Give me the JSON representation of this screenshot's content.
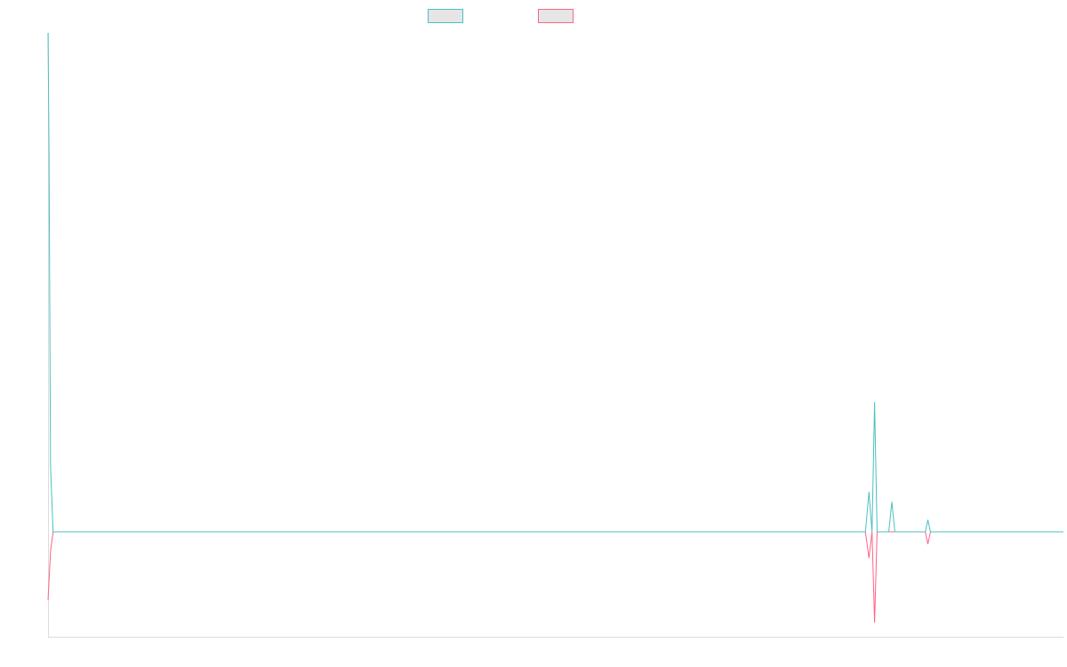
{
  "chart_data": {
    "type": "line",
    "title": "",
    "xlabel": "",
    "ylabel": "",
    "grid": false,
    "legend_position": "top-center",
    "x_range": [
      0,
      200
    ],
    "ylim": [
      -60,
      250
    ],
    "series": [
      {
        "color": "#4bc0c0",
        "fill": "#e6e6e6",
        "points": [
          [
            0,
            250
          ],
          [
            0.2,
            190
          ],
          [
            0.5,
            33
          ],
          [
            1.0,
            0
          ],
          [
            161,
            0
          ],
          [
            161.7,
            20
          ],
          [
            162.3,
            0
          ],
          [
            162.8,
            65
          ],
          [
            163.3,
            0
          ],
          [
            165.6,
            0
          ],
          [
            166.2,
            15
          ],
          [
            166.8,
            0
          ],
          [
            172.8,
            0
          ],
          [
            173.3,
            6
          ],
          [
            173.8,
            0
          ],
          [
            200,
            0
          ]
        ]
      },
      {
        "color": "#ff6384",
        "fill": "#e6e6e6",
        "points": [
          [
            0,
            -39
          ],
          [
            0.5,
            -11
          ],
          [
            1.0,
            0
          ],
          [
            161,
            0
          ],
          [
            161.7,
            -15
          ],
          [
            162.3,
            0
          ],
          [
            162.8,
            -52
          ],
          [
            163.3,
            0
          ],
          [
            172.8,
            0
          ],
          [
            173.3,
            -7
          ],
          [
            173.8,
            0
          ],
          [
            200,
            0
          ]
        ]
      }
    ]
  }
}
